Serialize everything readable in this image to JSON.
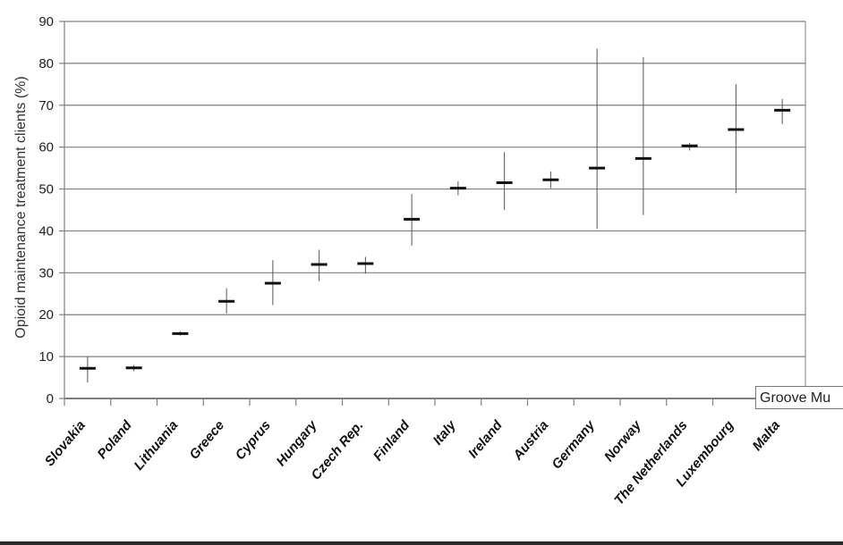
{
  "chart_data": {
    "type": "range",
    "title": "",
    "xlabel": "",
    "ylabel": "Opioid maintenance treatment clients (%)",
    "ylim": [
      0,
      90
    ],
    "yticks": [
      0,
      10,
      20,
      30,
      40,
      50,
      60,
      70,
      80,
      90
    ],
    "grid": true,
    "categories": [
      "Slovakia",
      "Poland",
      "Lithuania",
      "Greece",
      "Cyprus",
      "Hungary",
      "Czech Rep.",
      "Finland",
      "Italy",
      "Ireland",
      "Austria",
      "Germany",
      "Norway",
      "The Netherlands",
      "Luxembourg",
      "Malta"
    ],
    "series": [
      {
        "values": [
          7.2,
          7.3,
          15.5,
          23.2,
          27.5,
          32.0,
          32.2,
          42.8,
          50.2,
          51.5,
          52.2,
          55.0,
          57.3,
          60.3,
          64.2,
          68.8
        ],
        "low": [
          3.8,
          6.5,
          15.0,
          20.3,
          22.3,
          28.0,
          29.8,
          36.5,
          48.5,
          45.0,
          50.2,
          40.5,
          43.8,
          59.2,
          49.0,
          65.5
        ],
        "high": [
          10.0,
          8.0,
          16.0,
          26.3,
          33.0,
          35.5,
          33.8,
          48.8,
          51.8,
          58.8,
          54.2,
          83.5,
          81.5,
          61.0,
          75.0,
          71.5
        ]
      }
    ],
    "colors": {
      "grid": "#7f7f7f",
      "mark": "#111111",
      "axis": "#7f7f7f"
    }
  },
  "tooltip": {
    "text": "Groove Mu"
  }
}
